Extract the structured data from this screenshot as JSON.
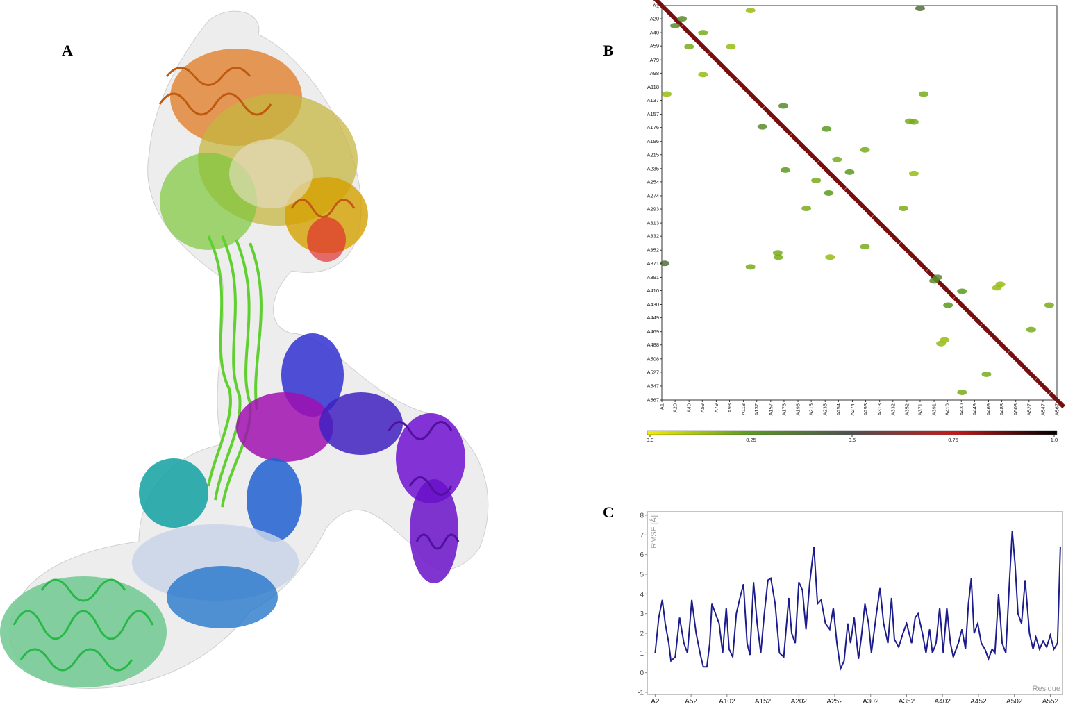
{
  "chart_data": [
    {
      "type": "structure",
      "panel_label": "A"
    },
    {
      "type": "contact_map",
      "panel_label": "B",
      "xlim": [
        1,
        567
      ],
      "ylim": [
        1,
        567
      ],
      "xticks": [
        {
          "value": 1,
          "label": "A1"
        },
        {
          "value": 20,
          "label": "A20"
        },
        {
          "value": 40,
          "label": "A40"
        },
        {
          "value": 59,
          "label": "A59"
        },
        {
          "value": 79,
          "label": "A79"
        },
        {
          "value": 98,
          "label": "A98"
        },
        {
          "value": 118,
          "label": "A118"
        },
        {
          "value": 137,
          "label": "A137"
        },
        {
          "value": 157,
          "label": "A157"
        },
        {
          "value": 176,
          "label": "A176"
        },
        {
          "value": 196,
          "label": "A196"
        },
        {
          "value": 215,
          "label": "A215"
        },
        {
          "value": 235,
          "label": "A235"
        },
        {
          "value": 254,
          "label": "A254"
        },
        {
          "value": 274,
          "label": "A274"
        },
        {
          "value": 293,
          "label": "A293"
        },
        {
          "value": 313,
          "label": "A313"
        },
        {
          "value": 332,
          "label": "A332"
        },
        {
          "value": 352,
          "label": "A352"
        },
        {
          "value": 371,
          "label": "A371"
        },
        {
          "value": 391,
          "label": "A391"
        },
        {
          "value": 410,
          "label": "A410"
        },
        {
          "value": 430,
          "label": "A430"
        },
        {
          "value": 449,
          "label": "A449"
        },
        {
          "value": 469,
          "label": "A469"
        },
        {
          "value": 488,
          "label": "A488"
        },
        {
          "value": 508,
          "label": "A508"
        },
        {
          "value": 527,
          "label": "A527"
        },
        {
          "value": 547,
          "label": "A547"
        },
        {
          "value": 567,
          "label": "A567"
        }
      ],
      "yticks": [
        {
          "value": 1,
          "label": "A1"
        },
        {
          "value": 20,
          "label": "A20"
        },
        {
          "value": 40,
          "label": "A40"
        },
        {
          "value": 59,
          "label": "A59"
        },
        {
          "value": 79,
          "label": "A79"
        },
        {
          "value": 98,
          "label": "A98"
        },
        {
          "value": 118,
          "label": "A118"
        },
        {
          "value": 137,
          "label": "A137"
        },
        {
          "value": 157,
          "label": "A157"
        },
        {
          "value": 176,
          "label": "A176"
        },
        {
          "value": 196,
          "label": "A196"
        },
        {
          "value": 215,
          "label": "A215"
        },
        {
          "value": 235,
          "label": "A235"
        },
        {
          "value": 254,
          "label": "A254"
        },
        {
          "value": 274,
          "label": "A274"
        },
        {
          "value": 293,
          "label": "A293"
        },
        {
          "value": 313,
          "label": "A313"
        },
        {
          "value": 332,
          "label": "A332"
        },
        {
          "value": 352,
          "label": "A352"
        },
        {
          "value": 371,
          "label": "A371"
        },
        {
          "value": 391,
          "label": "A391"
        },
        {
          "value": 410,
          "label": "A410"
        },
        {
          "value": 430,
          "label": "A430"
        },
        {
          "value": 449,
          "label": "A449"
        },
        {
          "value": 469,
          "label": "A469"
        },
        {
          "value": 488,
          "label": "A488"
        },
        {
          "value": 508,
          "label": "A508"
        },
        {
          "value": 527,
          "label": "A527"
        },
        {
          "value": 547,
          "label": "A547"
        },
        {
          "value": 567,
          "label": "A567"
        }
      ],
      "contacts": [
        [
          1,
          1,
          0.85
        ],
        [
          20,
          20,
          0.85
        ],
        [
          40,
          40,
          0.85
        ],
        [
          59,
          59,
          0.85
        ],
        [
          79,
          79,
          0.85
        ],
        [
          98,
          98,
          0.85
        ],
        [
          118,
          118,
          0.85
        ],
        [
          137,
          137,
          0.85
        ],
        [
          157,
          157,
          0.85
        ],
        [
          176,
          176,
          0.85
        ],
        [
          196,
          196,
          0.85
        ],
        [
          215,
          215,
          0.85
        ],
        [
          235,
          235,
          0.85
        ],
        [
          254,
          254,
          0.85
        ],
        [
          274,
          274,
          0.85
        ],
        [
          293,
          293,
          0.85
        ],
        [
          313,
          313,
          0.85
        ],
        [
          332,
          332,
          0.85
        ],
        [
          352,
          352,
          0.85
        ],
        [
          371,
          371,
          0.85
        ],
        [
          391,
          391,
          0.85
        ],
        [
          410,
          410,
          0.85
        ],
        [
          430,
          430,
          0.85
        ],
        [
          449,
          449,
          0.85
        ],
        [
          469,
          469,
          0.85
        ],
        [
          488,
          488,
          0.85
        ],
        [
          508,
          508,
          0.85
        ],
        [
          527,
          527,
          0.85
        ],
        [
          547,
          547,
          0.85
        ],
        [
          567,
          567,
          0.85
        ],
        [
          128,
          8,
          0.15
        ],
        [
          371,
          5,
          0.4
        ],
        [
          376,
          128,
          0.2
        ],
        [
          237,
          178,
          0.25
        ],
        [
          292,
          208,
          0.2
        ],
        [
          362,
          168,
          0.2
        ],
        [
          347,
          292,
          0.2
        ],
        [
          396,
          391,
          0.3
        ],
        [
          486,
          401,
          0.15
        ],
        [
          556,
          431,
          0.2
        ],
        [
          406,
          481,
          0.15
        ],
        [
          466,
          530,
          0.2
        ],
        [
          167,
          356,
          0.2
        ],
        [
          242,
          362,
          0.15
        ],
        [
          222,
          252,
          0.2
        ],
        [
          431,
          411,
          0.25
        ],
        [
          40,
          60,
          0.2
        ],
        [
          100,
          60,
          0.15
        ],
        [
          270,
          240,
          0.25
        ],
        [
          145,
          175,
          0.3
        ],
        [
          30,
          20,
          0.3
        ]
      ],
      "colorbar": {
        "lim": [
          0,
          1
        ],
        "colorscale": [
          "#f2ee00",
          "#5a9a20",
          "#505050",
          "#c81818",
          "#000000"
        ],
        "ticks": [
          {
            "value": 0,
            "label": "0.0"
          },
          0.25,
          0.5,
          0.75,
          {
            "value": 1,
            "label": "1.0"
          }
        ]
      }
    },
    {
      "type": "line",
      "panel_label": "C",
      "x_label": "Residue",
      "y_label": "RMSF [Å]",
      "xlim": [
        -9,
        569
      ],
      "ylim": [
        -1,
        8
      ],
      "xticks": [
        {
          "value": 2,
          "label": "A2"
        },
        {
          "value": 52,
          "label": "A52"
        },
        {
          "value": 102,
          "label": "A102"
        },
        {
          "value": 152,
          "label": "A152"
        },
        {
          "value": 202,
          "label": "A202"
        },
        {
          "value": 252,
          "label": "A252"
        },
        {
          "value": 302,
          "label": "A302"
        },
        {
          "value": 352,
          "label": "A352"
        },
        {
          "value": 402,
          "label": "A402"
        },
        {
          "value": 452,
          "label": "A452"
        },
        {
          "value": 502,
          "label": "A502"
        },
        {
          "value": 552,
          "label": "A552"
        }
      ],
      "yticks": [
        -1,
        0,
        1,
        2,
        3,
        4,
        5,
        6,
        7,
        8
      ],
      "series": [
        {
          "color": "#1c1c8c",
          "x": [
            2,
            7,
            12,
            16,
            21,
            24,
            30,
            36,
            42,
            47,
            53,
            59,
            65,
            69,
            74,
            78,
            81,
            86,
            91,
            96,
            101,
            105,
            110,
            115,
            120,
            125,
            130,
            134,
            139,
            144,
            149,
            154,
            159,
            163,
            169,
            175,
            181,
            188,
            192,
            197,
            202,
            207,
            212,
            217,
            223,
            228,
            233,
            239,
            245,
            250,
            255,
            260,
            265,
            270,
            274,
            279,
            285,
            289,
            294,
            299,
            303,
            310,
            315,
            320,
            326,
            331,
            335,
            341,
            347,
            352,
            359,
            364,
            368,
            374,
            379,
            384,
            388,
            393,
            398,
            403,
            408,
            413,
            417,
            424,
            429,
            434,
            438,
            442,
            446,
            451,
            456,
            461,
            466,
            471,
            475,
            480,
            485,
            490,
            495,
            499,
            503,
            507,
            512,
            517,
            523,
            528,
            532,
            537,
            542,
            547,
            552,
            557,
            562,
            566
          ],
          "values": [
            1.0,
            2.8,
            3.7,
            2.5,
            1.5,
            0.6,
            0.8,
            2.8,
            1.5,
            1.0,
            3.7,
            2.0,
            0.9,
            0.3,
            0.3,
            1.5,
            3.5,
            3.0,
            2.5,
            1.0,
            3.3,
            1.2,
            0.8,
            3.0,
            3.8,
            4.5,
            1.5,
            0.9,
            4.6,
            2.5,
            1.0,
            3.0,
            4.7,
            4.8,
            3.5,
            1.0,
            0.8,
            3.8,
            2.0,
            1.5,
            4.6,
            4.2,
            2.2,
            4.5,
            6.4,
            3.5,
            3.7,
            2.5,
            2.2,
            3.3,
            1.5,
            0.2,
            0.6,
            2.5,
            1.5,
            2.8,
            0.7,
            1.8,
            3.5,
            2.5,
            1.0,
            3.0,
            4.3,
            2.5,
            1.5,
            3.8,
            1.7,
            1.3,
            2.0,
            2.5,
            1.5,
            2.8,
            3.0,
            2.0,
            1.0,
            2.2,
            1.0,
            1.5,
            3.3,
            1.0,
            3.3,
            1.5,
            0.8,
            1.5,
            2.2,
            1.2,
            3.5,
            4.8,
            2.0,
            2.5,
            1.5,
            1.2,
            0.7,
            1.2,
            1.0,
            4.0,
            1.5,
            1.0,
            4.5,
            7.2,
            5.5,
            3.0,
            2.5,
            4.7,
            2.0,
            1.2,
            1.8,
            1.2,
            1.6,
            1.3,
            1.9,
            1.2,
            1.5,
            6.4
          ]
        }
      ]
    }
  ]
}
